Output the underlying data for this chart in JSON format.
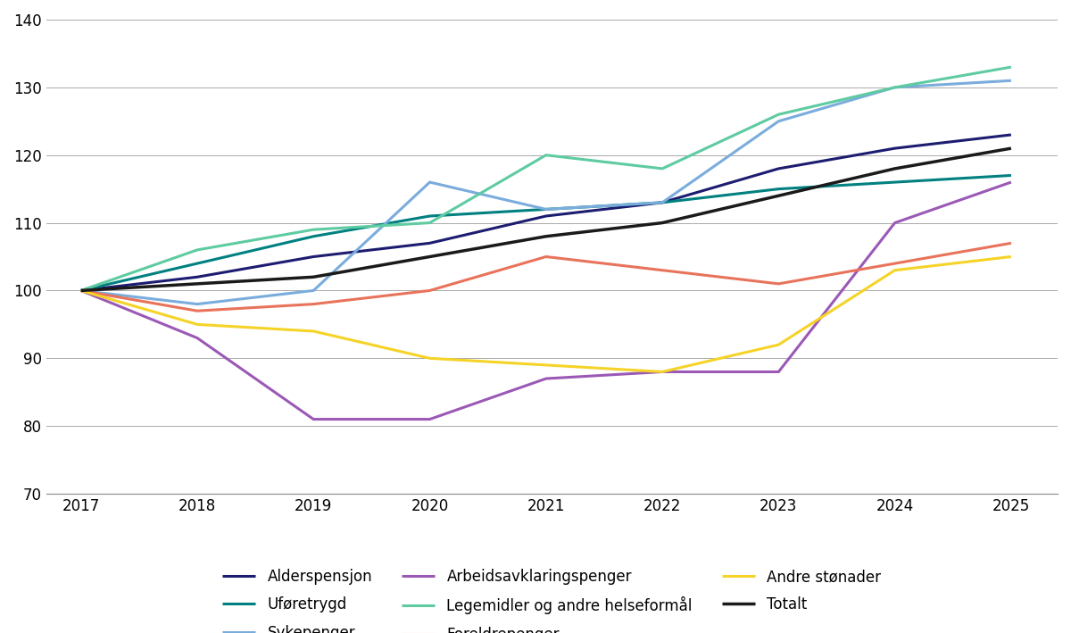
{
  "years": [
    2017,
    2018,
    2019,
    2020,
    2021,
    2022,
    2023,
    2024,
    2025
  ],
  "series": {
    "Alderspensjon": {
      "values": [
        100,
        102,
        105,
        107,
        111,
        113,
        118,
        121,
        123
      ],
      "color": "#1c1c70",
      "linewidth": 2.2
    },
    "Uføretrygd": {
      "values": [
        100,
        104,
        108,
        111,
        112,
        113,
        115,
        116,
        117
      ],
      "color": "#008080",
      "linewidth": 2.2
    },
    "Sykepenger": {
      "values": [
        100,
        98,
        100,
        116,
        112,
        113,
        125,
        130,
        131
      ],
      "color": "#7aacdc",
      "linewidth": 2.2
    },
    "Arbeidsavklaringspenger": {
      "values": [
        100,
        93,
        81,
        81,
        87,
        88,
        88,
        110,
        116
      ],
      "color": "#9b59b6",
      "linewidth": 2.2
    },
    "Legemidler og andre helseformål": {
      "values": [
        100,
        106,
        109,
        110,
        120,
        118,
        126,
        130,
        133
      ],
      "color": "#5ecba1",
      "linewidth": 2.2
    },
    "Foreldrepenger": {
      "values": [
        100,
        97,
        98,
        100,
        105,
        103,
        101,
        104,
        107
      ],
      "color": "#e8735a",
      "linewidth": 2.2
    },
    "Andre stønader": {
      "values": [
        100,
        95,
        94,
        90,
        89,
        88,
        92,
        103,
        105
      ],
      "color": "#f5d327",
      "linewidth": 2.2
    },
    "Totalt": {
      "values": [
        100,
        101,
        102,
        105,
        108,
        110,
        114,
        118,
        121
      ],
      "color": "#1a1a1a",
      "linewidth": 2.5
    }
  },
  "ylim": [
    70,
    140
  ],
  "yticks": [
    70,
    80,
    90,
    100,
    110,
    120,
    130,
    140
  ],
  "xlim": [
    2016.7,
    2025.4
  ],
  "legend_order": [
    "Alderspensjon",
    "Uføretrygd",
    "Sykepenger",
    "Arbeidsavklaringspenger",
    "Legemidler og andre helseformål",
    "Foreldrepenger",
    "Andre stønader",
    "Totalt"
  ],
  "background_color": "#ffffff",
  "grid_color": "#aaaaaa",
  "legend_ncol": 3,
  "tick_fontsize": 12,
  "legend_fontsize": 12
}
